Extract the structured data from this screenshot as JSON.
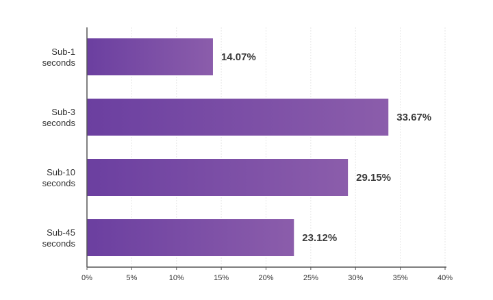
{
  "chart_data": {
    "type": "bar",
    "orientation": "horizontal",
    "categories": [
      [
        "Sub-1",
        "seconds"
      ],
      [
        "Sub-3",
        "seconds"
      ],
      [
        "Sub-10",
        "seconds"
      ],
      [
        "Sub-45",
        "seconds"
      ]
    ],
    "values": [
      14.07,
      33.67,
      29.15,
      23.12
    ],
    "value_labels": [
      "14.07%",
      "33.67%",
      "29.15%",
      "23.12%"
    ],
    "x_ticks": [
      "0%",
      "5%",
      "10%",
      "15%",
      "20%",
      "25%",
      "30%",
      "35%",
      "40%"
    ],
    "xlim": [
      0,
      40
    ],
    "title": "",
    "xlabel": "",
    "ylabel": "",
    "grid": "vertical-dashed",
    "legend": "none",
    "colors": {
      "bar_start": "#6b3fa0",
      "bar_end": "#8b5dab",
      "axis": "#555555",
      "grid": "#e6e6e6",
      "text": "#333333"
    }
  }
}
